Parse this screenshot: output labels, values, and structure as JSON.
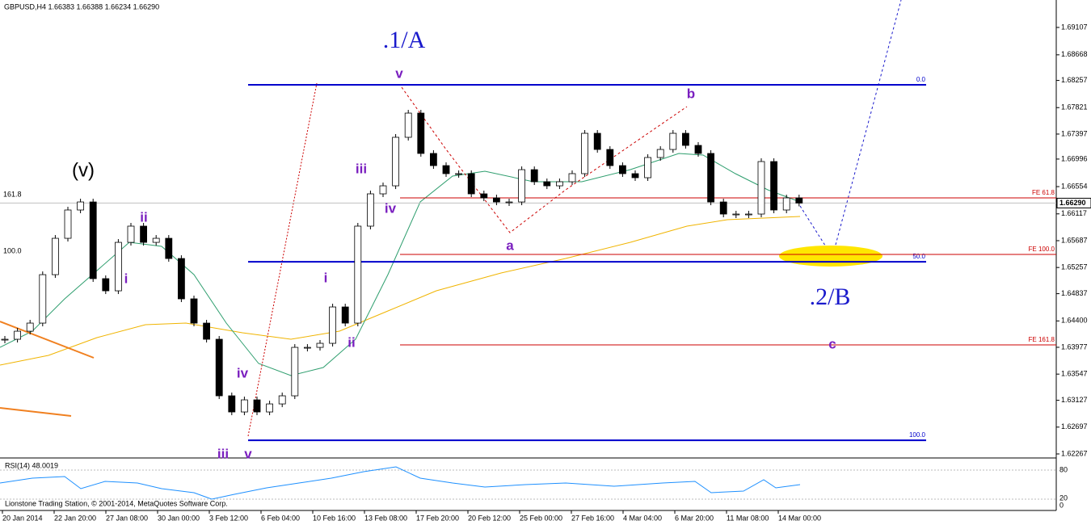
{
  "chart_data": {
    "type": "candlestick",
    "title": "GBPUSD,H4 1.66383 1.66388 1.66234 1.66290",
    "values": [
      1.64106,
      1.64235,
      1.64365,
      1.65142,
      1.65725,
      1.66179,
      1.66308,
      1.65078,
      1.64883,
      1.6566,
      1.6592,
      1.6566,
      1.65725,
      1.65401,
      1.64754,
      1.64365,
      1.64106,
      1.63199,
      1.6294,
      1.63134,
      1.6294,
      1.63069,
      1.63199,
      1.63976,
      1.63976,
      1.64041,
      1.64624,
      1.64365,
      1.6592,
      1.66438,
      1.66567,
      1.67345,
      1.67733,
      1.67086,
      1.66891,
      1.66762,
      1.66762,
      1.66438,
      1.66373,
      1.66308,
      1.66308,
      1.66826,
      1.66632,
      1.66567,
      1.66632,
      1.66762,
      1.67409,
      1.6715,
      1.66891,
      1.66762,
      1.66697,
      1.67021,
      1.6715,
      1.67409,
      1.67215,
      1.67086,
      1.66308,
      1.66114,
      1.66114,
      1.66114,
      1.66956,
      1.66179,
      1.66373,
      1.6629
    ],
    "up_color": "#ffffff",
    "down_color": "#000000",
    "ylim": [
      1.62228,
      1.69547
    ],
    "yticks": [
      1.69107,
      1.68668,
      1.68257,
      1.67821,
      1.67397,
      1.66996,
      1.66554,
      1.66117,
      1.65687,
      1.65257,
      1.64837,
      {
        "value": 1.644,
        "label": "1.64400"
      },
      1.63977,
      1.63547,
      1.63127,
      1.62697,
      1.62267
    ],
    "current_price": {
      "value": 1.6629,
      "label": "1.66290"
    },
    "time_labels": [
      "20 Jan 2014",
      "22 Jan 20:00",
      "27 Jan 08:00",
      "30 Jan 00:00",
      "3 Feb 12:00",
      "6 Feb 04:00",
      "10 Feb 16:00",
      "13 Feb 08:00",
      "17 Feb 20:00",
      "20 Feb 12:00",
      "25 Feb 00:00",
      "27 Feb 16:00",
      "4 Mar 04:00",
      "6 Mar 20:00",
      "11 Mar 08:00",
      "14 Mar 00:00"
    ],
    "levels": [
      {
        "label": "0.0",
        "value": 1.68187,
        "color": "#0000cc"
      },
      {
        "label": "50.0",
        "value": 1.65349,
        "color": "#0000cc"
      },
      {
        "label": "100.0",
        "value": 1.62486,
        "color": "#0000cc"
      },
      {
        "label": "FE 61.8",
        "value": 1.66373,
        "color": "#cc0000"
      },
      {
        "label": "FE 100.0",
        "value": 1.65466,
        "color": "#cc0000"
      },
      {
        "label": "FE 161.8",
        "value": 1.64015,
        "color": "#cc0000"
      }
    ],
    "left_labels": [
      "161.8",
      "100.0"
    ],
    "wave_labels": [
      "(v)",
      "i",
      "ii",
      "iii",
      "iv",
      "v",
      "i",
      "ii",
      "iii",
      "iv",
      "v",
      "a",
      "b",
      "c"
    ],
    "degree_labels": [
      ".1/A",
      ".2/B"
    ],
    "rsi": {
      "label": "RSI(14) 48.0019",
      "ticks": [
        "80",
        "20",
        "0"
      ]
    },
    "footer": "Lionstone Trading Station, © 2001-2014, MetaQuotes Software Corp."
  }
}
